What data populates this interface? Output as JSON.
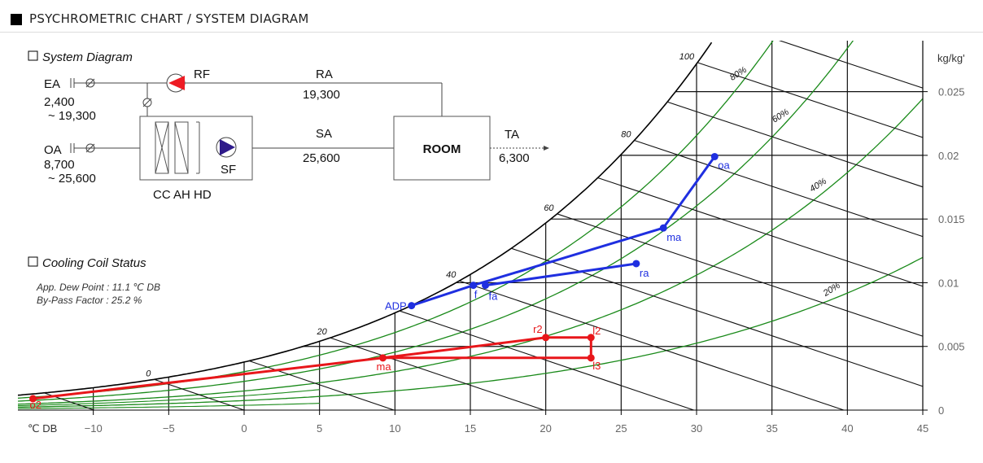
{
  "header": {
    "title": "PSYCHROMETRIC CHART / SYSTEM DIAGRAM"
  },
  "system_diagram": {
    "title": "System Diagram",
    "ea": {
      "label": "EA",
      "value": "2,400",
      "range": "~ 19,300"
    },
    "oa": {
      "label": "OA",
      "value": "8,700",
      "range": "~ 25,600"
    },
    "rf_label": "RF",
    "sf_label": "SF",
    "ra": {
      "label": "RA",
      "value": "19,300"
    },
    "sa": {
      "label": "SA",
      "value": "25,600"
    },
    "room_label": "ROOM",
    "ta": {
      "label": "TA",
      "value": "6,300"
    },
    "coil_label": "CC AH HD",
    "colors": {
      "fan_rf": "#ee1c24",
      "fan_sf": "#2e1a8a"
    }
  },
  "coil_status": {
    "title": "Cooling Coil Status",
    "adp_line": "App. Dew Point : 11.1 ℃ DB",
    "bf_line": "By-Pass Factor : 25.2 %"
  },
  "chart_data": {
    "type": "scatter",
    "xlabel": "℃ DB",
    "ylabel": "kg/kg'",
    "xlim": [
      -15,
      45
    ],
    "ylim": [
      0,
      0.029
    ],
    "x_ticks": [
      -10,
      -5,
      0,
      5,
      10,
      15,
      20,
      25,
      30,
      35,
      40,
      45
    ],
    "y_ticks": [
      0,
      0.005,
      0.01,
      0.015,
      0.02,
      0.025
    ],
    "y_tick_labels": [
      "0",
      "0.005",
      "0.01",
      "0.015",
      "0.02",
      "0.025"
    ],
    "rh_curves": [
      20,
      40,
      60,
      80
    ],
    "rh_labels": [
      "20%",
      "40%",
      "60%",
      "80%"
    ],
    "enthalpy_labels": [
      "0",
      "20",
      "40",
      "60",
      "80",
      "100"
    ],
    "grid": true,
    "series": [
      {
        "color": "#1f2fe0",
        "points": [
          {
            "label": "oa",
            "x": 31.2,
            "y": 0.0199
          },
          {
            "label": "ma",
            "x": 27.8,
            "y": 0.0143
          },
          {
            "label": "ra",
            "x": 26.0,
            "y": 0.0115
          },
          {
            "label": "fa",
            "x": 16.0,
            "y": 0.0098
          },
          {
            "label": "f",
            "x": 15.2,
            "y": 0.0098
          },
          {
            "label": "ADP",
            "x": 11.1,
            "y": 0.0082
          }
        ],
        "path": [
          "oa",
          "ma",
          "f",
          "ADP"
        ],
        "path2": [
          "ra",
          "fa"
        ]
      },
      {
        "color": "#e8161a",
        "points": [
          {
            "label": "o2",
            "x": -14.0,
            "y": 0.0009
          },
          {
            "label": "ma",
            "x": 9.2,
            "y": 0.0041
          },
          {
            "label": "r2",
            "x": 20.0,
            "y": 0.0057
          },
          {
            "label": "l2",
            "x": 23.0,
            "y": 0.0057
          },
          {
            "label": "l3",
            "x": 23.0,
            "y": 0.0041
          }
        ],
        "path": [
          "o2",
          "ma",
          "r2",
          "l2",
          "l3",
          "ma"
        ]
      }
    ]
  }
}
